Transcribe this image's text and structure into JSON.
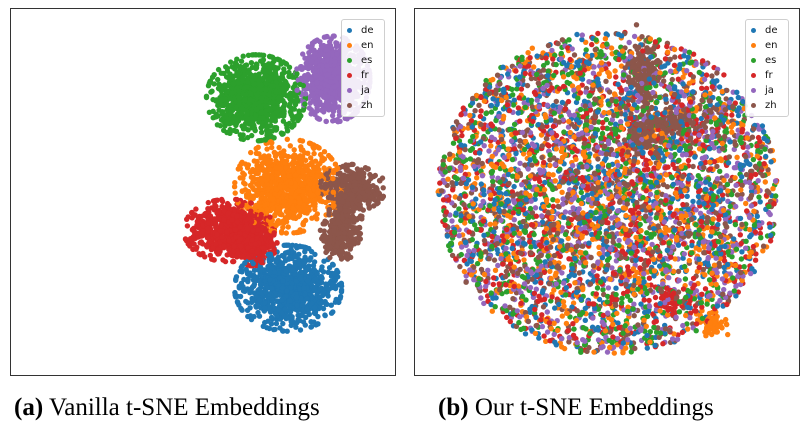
{
  "chart_data": [
    {
      "type": "scatter",
      "panel_label": "(a)",
      "caption": "Vanilla t-SNE Embeddings",
      "title": "",
      "xlabel": "",
      "ylabel": "",
      "axis_ticks": false,
      "grid": false,
      "legend_position": "top-right",
      "series": [
        {
          "name": "de",
          "color": "#1f77b4",
          "clusters": [
            {
              "center": [
                0.47,
                -0.56
              ],
              "spread": [
                0.13,
                0.11
              ],
              "count": 900
            }
          ]
        },
        {
          "name": "en",
          "color": "#ff7f0e",
          "clusters": [
            {
              "center": [
                0.47,
                0.04
              ],
              "spread": [
                0.13,
                0.12
              ],
              "count": 900
            }
          ]
        },
        {
          "name": "es",
          "color": "#2ca02c",
          "clusters": [
            {
              "center": [
                0.29,
                0.56
              ],
              "spread": [
                0.12,
                0.11
              ],
              "count": 900
            }
          ]
        },
        {
          "name": "fr",
          "color": "#d62728",
          "clusters": [
            {
              "center": [
                0.14,
                -0.22
              ],
              "spread": [
                0.11,
                0.08
              ],
              "count": 600
            },
            {
              "center": [
                0.27,
                -0.29
              ],
              "spread": [
                0.06,
                0.06
              ],
              "count": 250
            }
          ]
        },
        {
          "name": "ja",
          "color": "#9467bd",
          "clusters": [
            {
              "center": [
                0.72,
                0.67
              ],
              "spread": [
                0.09,
                0.11
              ],
              "count": 800
            }
          ]
        },
        {
          "name": "zh",
          "color": "#8c564b",
          "clusters": [
            {
              "center": [
                0.83,
                0.03
              ],
              "spread": [
                0.08,
                0.06
              ],
              "count": 350
            },
            {
              "center": [
                0.79,
                -0.14
              ],
              "spread": [
                0.04,
                0.07
              ],
              "count": 200
            },
            {
              "center": [
                0.76,
                -0.26
              ],
              "spread": [
                0.05,
                0.06
              ],
              "count": 180
            }
          ]
        }
      ]
    },
    {
      "type": "scatter",
      "panel_label": "(b)",
      "caption": "Our t-SNE Embeddings",
      "title": "",
      "xlabel": "",
      "ylabel": "",
      "axis_ticks": false,
      "grid": false,
      "legend_position": "top-right",
      "series": [
        {
          "name": "de",
          "color": "#1f77b4",
          "distribution": "diffuse",
          "count": 800
        },
        {
          "name": "en",
          "color": "#ff7f0e",
          "distribution": "diffuse",
          "count": 800,
          "dense_spots": [
            {
              "center": [
                0.59,
                -0.78
              ],
              "spread": [
                0.03,
                0.03
              ],
              "count": 60
            }
          ]
        },
        {
          "name": "es",
          "color": "#2ca02c",
          "distribution": "diffuse",
          "count": 800
        },
        {
          "name": "fr",
          "color": "#d62728",
          "distribution": "diffuse",
          "count": 800,
          "dense_spots": [
            {
              "center": [
                0.34,
                -0.63
              ],
              "spread": [
                0.03,
                0.03
              ],
              "count": 50
            }
          ]
        },
        {
          "name": "ja",
          "color": "#9467bd",
          "distribution": "diffuse",
          "count": 800
        },
        {
          "name": "zh",
          "color": "#8c564b",
          "distribution": "diffuse",
          "count": 800,
          "dense_spots": [
            {
              "center": [
                0.2,
                0.72
              ],
              "spread": [
                0.04,
                0.08
              ],
              "count": 140
            },
            {
              "center": [
                0.2,
                0.35
              ],
              "spread": [
                0.05,
                0.06
              ],
              "count": 120
            },
            {
              "center": [
                0.38,
                0.42
              ],
              "spread": [
                0.07,
                0.04
              ],
              "count": 110
            }
          ]
        }
      ]
    }
  ]
}
